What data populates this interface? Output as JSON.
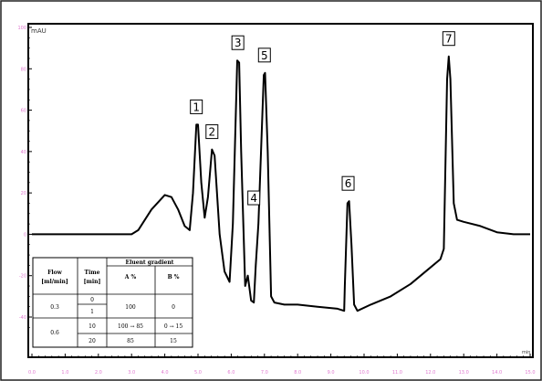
{
  "chart_data": {
    "type": "line",
    "ylabel": "mAU",
    "xunit": "min",
    "xlim": [
      0,
      15
    ],
    "ylim": [
      -50,
      100
    ],
    "x_ticks": [
      "0.0",
      "1.0",
      "2.0",
      "3.0",
      "4.0",
      "5.0",
      "6.0",
      "7.0",
      "8.0",
      "9.0",
      "10.0",
      "11.0",
      "12.0",
      "13.0",
      "14.0",
      "15.0"
    ],
    "y_ticks": [
      "100",
      "80",
      "60",
      "40",
      "20",
      "0",
      "-20",
      "-40"
    ],
    "series": [
      {
        "points": [
          [
            0.0,
            0
          ],
          [
            3.0,
            0
          ],
          [
            3.2,
            2
          ],
          [
            3.6,
            12
          ],
          [
            4.0,
            19
          ],
          [
            4.2,
            18
          ],
          [
            4.4,
            12
          ],
          [
            4.6,
            4
          ],
          [
            4.75,
            2
          ],
          [
            4.85,
            20
          ],
          [
            4.95,
            53
          ],
          [
            5.0,
            53
          ],
          [
            5.1,
            25
          ],
          [
            5.2,
            8
          ],
          [
            5.3,
            18
          ],
          [
            5.42,
            41
          ],
          [
            5.5,
            38
          ],
          [
            5.65,
            0
          ],
          [
            5.8,
            -18
          ],
          [
            5.95,
            -23
          ],
          [
            6.05,
            5
          ],
          [
            6.18,
            84
          ],
          [
            6.24,
            83
          ],
          [
            6.3,
            40
          ],
          [
            6.42,
            -25
          ],
          [
            6.5,
            -20
          ],
          [
            6.6,
            -32
          ],
          [
            6.68,
            -33
          ],
          [
            6.74,
            -15
          ],
          [
            6.82,
            5
          ],
          [
            6.98,
            77
          ],
          [
            7.02,
            78
          ],
          [
            7.1,
            40
          ],
          [
            7.2,
            -30
          ],
          [
            7.3,
            -33
          ],
          [
            7.6,
            -34
          ],
          [
            8.0,
            -34
          ],
          [
            8.6,
            -35
          ],
          [
            9.2,
            -36
          ],
          [
            9.4,
            -37
          ],
          [
            9.42,
            -25
          ],
          [
            9.5,
            15
          ],
          [
            9.55,
            16
          ],
          [
            9.62,
            -5
          ],
          [
            9.7,
            -34
          ],
          [
            9.8,
            -37
          ],
          [
            10.2,
            -34
          ],
          [
            10.8,
            -30
          ],
          [
            11.4,
            -24
          ],
          [
            12.0,
            -16
          ],
          [
            12.3,
            -12
          ],
          [
            12.4,
            -7
          ],
          [
            12.5,
            75
          ],
          [
            12.55,
            86
          ],
          [
            12.6,
            75
          ],
          [
            12.7,
            15
          ],
          [
            12.8,
            7
          ],
          [
            13.0,
            6
          ],
          [
            13.5,
            4
          ],
          [
            14.0,
            1
          ],
          [
            14.5,
            0
          ],
          [
            15.0,
            0
          ]
        ]
      }
    ],
    "peak_labels": [
      {
        "label": "1",
        "x": 4.95,
        "y": 53
      },
      {
        "label": "2",
        "x": 5.42,
        "y": 41
      },
      {
        "label": "3",
        "x": 6.2,
        "y": 84
      },
      {
        "label": "4",
        "x": 6.68,
        "y": 9
      },
      {
        "label": "5",
        "x": 7.0,
        "y": 78
      },
      {
        "label": "6",
        "x": 9.52,
        "y": 16
      },
      {
        "label": "7",
        "x": 12.55,
        "y": 86
      }
    ]
  },
  "table": {
    "headers": {
      "flow": "Flow [ml/min]",
      "flow_line1": "Flow",
      "flow_line2": "[ml/min]",
      "time_line1": "Time",
      "time_line2": "[min]",
      "gradient": "Eluent gradient",
      "a": "A %",
      "b": "B %"
    },
    "rows": [
      {
        "flow": "0.3",
        "time": "0",
        "a": "100",
        "b": "0"
      },
      {
        "flow": "",
        "time": "1",
        "a": "",
        "b": ""
      },
      {
        "flow": "0.6",
        "time": "10",
        "a": "100 → 85",
        "b": "0 → 15"
      },
      {
        "flow": "",
        "time": "20",
        "a": "85",
        "b": "15"
      }
    ]
  }
}
